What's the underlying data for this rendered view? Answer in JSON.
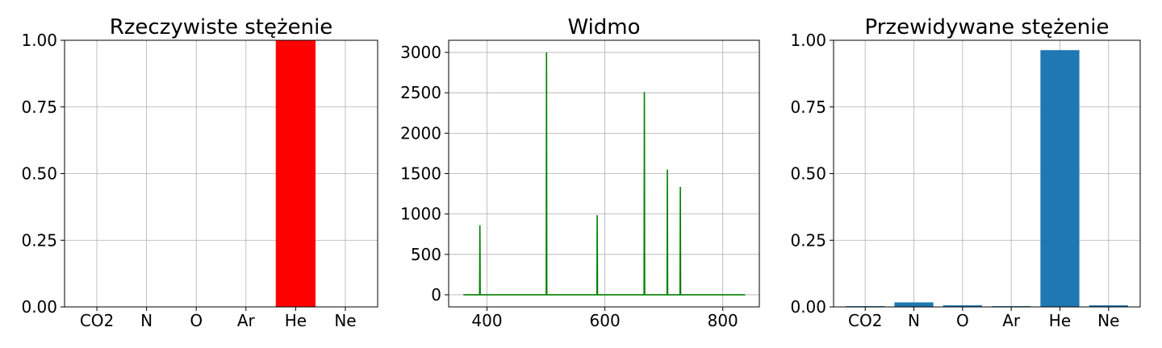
{
  "chart_data": [
    {
      "type": "bar",
      "title": "Rzeczywiste stężenie",
      "categories": [
        "CO2",
        "N",
        "O",
        "Ar",
        "He",
        "Ne"
      ],
      "values": [
        0,
        0,
        0,
        0,
        1.0,
        0
      ],
      "color": "#ff0000",
      "ylim": [
        0,
        1.0
      ],
      "yticks": [
        "0.00",
        "0.25",
        "0.50",
        "0.75",
        "1.00"
      ],
      "grid": true
    },
    {
      "type": "line",
      "title": "Widmo",
      "color": "#008000",
      "xlim": [
        335,
        862
      ],
      "ylim": [
        -150,
        3150
      ],
      "xticks": [
        400,
        600,
        800
      ],
      "yticks": [
        0,
        500,
        1000,
        1500,
        2000,
        2500,
        3000
      ],
      "baseline_range": [
        360,
        838
      ],
      "peaks": [
        {
          "x": 388,
          "y": 860
        },
        {
          "x": 501,
          "y": 3000
        },
        {
          "x": 587,
          "y": 985
        },
        {
          "x": 667,
          "y": 2510
        },
        {
          "x": 706,
          "y": 1550
        },
        {
          "x": 728,
          "y": 1335
        }
      ],
      "grid": true
    },
    {
      "type": "bar",
      "title": "Przewidywane stężenie",
      "categories": [
        "CO2",
        "N",
        "O",
        "Ar",
        "He",
        "Ne"
      ],
      "values": [
        0.003,
        0.017,
        0.006,
        0.003,
        0.963,
        0.006
      ],
      "color": "#1f77b4",
      "ylim": [
        0,
        1.0
      ],
      "yticks": [
        "0.00",
        "0.25",
        "0.50",
        "0.75",
        "1.00"
      ],
      "grid": true
    }
  ]
}
